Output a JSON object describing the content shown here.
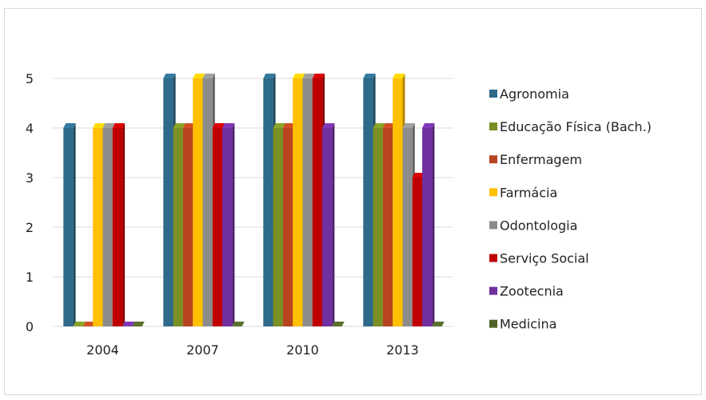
{
  "chart_data": {
    "type": "bar",
    "categories": [
      "2004",
      "2007",
      "2010",
      "2013"
    ],
    "series": [
      {
        "name": "Agronomia",
        "color": "#2e6a8a",
        "values": [
          4,
          5,
          5,
          5
        ]
      },
      {
        "name": "Educação Física (Bach.)",
        "color": "#7a8f24",
        "values": [
          0,
          4,
          4,
          4
        ]
      },
      {
        "name": "Enfermagem",
        "color": "#b8441f",
        "values": [
          0,
          4,
          4,
          4
        ]
      },
      {
        "name": "Farmácia",
        "color": "#ffc000",
        "values": [
          4,
          5,
          5,
          5
        ]
      },
      {
        "name": "Odontologia",
        "color": "#8c8c8c",
        "values": [
          4,
          5,
          5,
          4
        ]
      },
      {
        "name": "Serviço Social",
        "color": "#c00000",
        "values": [
          4,
          4,
          5,
          3
        ]
      },
      {
        "name": "Zootecnia",
        "color": "#7030a0",
        "values": [
          0,
          4,
          4,
          4
        ]
      },
      {
        "name": "Medicina",
        "color": "#4f6228",
        "values": [
          0,
          0,
          0,
          0
        ]
      }
    ],
    "ylim": [
      0,
      5
    ],
    "yticks": [
      0,
      1,
      2,
      3,
      4,
      5
    ],
    "grid": true,
    "legend": "right",
    "style": "3d-bar"
  }
}
